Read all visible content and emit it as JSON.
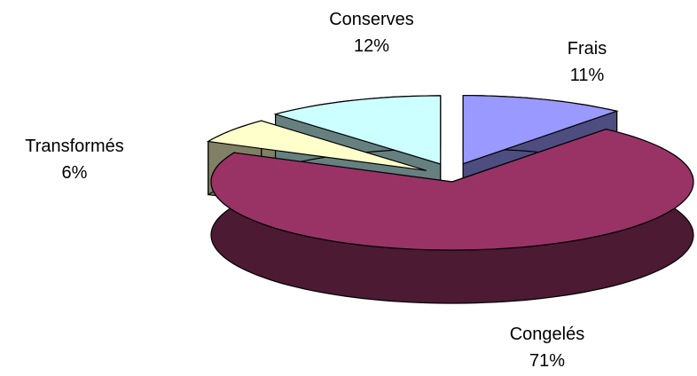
{
  "chart_data": {
    "type": "pie",
    "title": "",
    "slices": [
      {
        "name": "Frais",
        "label": "11%",
        "value": 11,
        "color": "#9999ff",
        "side_color": "#4d4d80"
      },
      {
        "name": "Congelés",
        "label": "71%",
        "value": 71,
        "color": "#993366",
        "side_color": "#4c1a33"
      },
      {
        "name": "Transformés",
        "label": "6%",
        "value": 6,
        "color": "#ffffcc",
        "side_color": "#808066"
      },
      {
        "name": "Conserves",
        "label": "12%",
        "value": 12,
        "color": "#ccffff",
        "side_color": "#668080"
      }
    ]
  }
}
